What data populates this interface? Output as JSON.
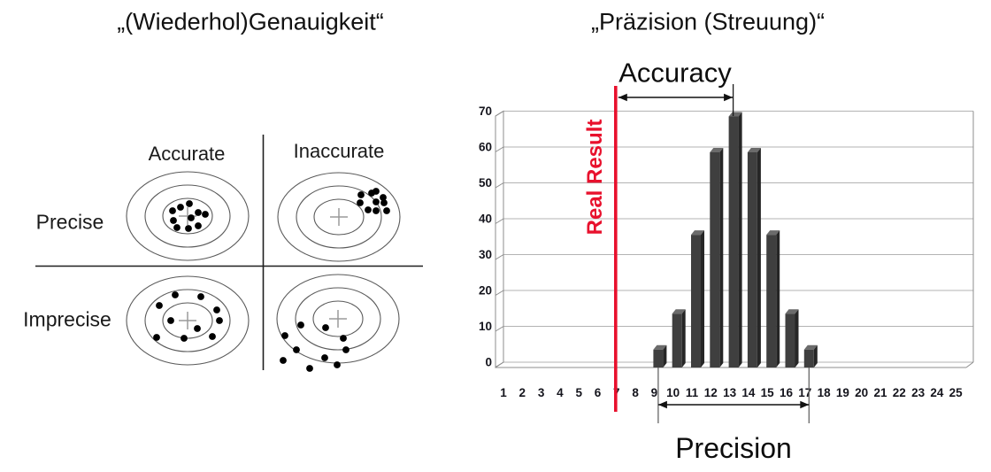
{
  "page": {
    "background": "#ffffff"
  },
  "left_panel": {
    "title": "„(Wiederhol)Genauigkeit“",
    "columns": [
      {
        "label": "Accurate"
      },
      {
        "label": "Inaccurate"
      }
    ],
    "rows": [
      {
        "label": "Precise"
      },
      {
        "label": "Imprecise"
      }
    ],
    "quadrants": [
      {
        "name": "precise-accurate",
        "dots": [
          [
            195,
            238
          ],
          [
            204,
            234
          ],
          [
            214,
            230
          ],
          [
            224,
            240
          ],
          [
            232,
            242
          ],
          [
            216,
            246
          ],
          [
            196,
            249
          ],
          [
            200,
            257
          ],
          [
            213,
            258
          ],
          [
            224,
            255
          ]
        ]
      },
      {
        "name": "precise-inaccurate",
        "dots": [
          [
            408,
            220
          ],
          [
            420,
            218
          ],
          [
            425,
            216
          ],
          [
            433,
            223
          ],
          [
            407,
            229
          ],
          [
            425,
            228
          ],
          [
            434,
            229
          ],
          [
            416,
            237
          ],
          [
            425,
            238
          ],
          [
            437,
            238
          ]
        ]
      },
      {
        "name": "imprecise-accurate",
        "dots": [
          [
            198,
            333
          ],
          [
            227,
            335
          ],
          [
            180,
            345
          ],
          [
            245,
            350
          ],
          [
            193,
            362
          ],
          [
            248,
            362
          ],
          [
            223,
            371
          ],
          [
            177,
            381
          ],
          [
            240,
            380
          ],
          [
            208,
            382
          ]
        ]
      },
      {
        "name": "imprecise-inaccurate",
        "dots": [
          [
            340,
            367
          ],
          [
            368,
            370
          ],
          [
            322,
            379
          ],
          [
            388,
            382
          ],
          [
            335,
            395
          ],
          [
            391,
            395
          ],
          [
            367,
            404
          ],
          [
            320,
            407
          ],
          [
            381,
            412
          ],
          [
            350,
            416
          ]
        ]
      }
    ]
  },
  "right_panel": {
    "title": "„Präzision (Streuung)“",
    "accuracy_label": "Accuracy",
    "precision_label": "Precision",
    "real_result_label": "Real Result",
    "real_result_color": "#e8112d",
    "real_result_x": 7,
    "accuracy_span_x": [
      7,
      13
    ],
    "precision_span_x": [
      9,
      17
    ]
  },
  "chart_data": {
    "type": "bar",
    "categories": [
      1,
      2,
      3,
      4,
      5,
      6,
      7,
      8,
      9,
      10,
      11,
      12,
      13,
      14,
      15,
      16,
      17,
      18,
      19,
      20,
      21,
      22,
      23,
      24,
      25
    ],
    "values": [
      0,
      0,
      0,
      0,
      0,
      0,
      0,
      0,
      5,
      15,
      37,
      60,
      70,
      60,
      37,
      15,
      5,
      0,
      0,
      0,
      0,
      0,
      0,
      0,
      0
    ],
    "title": "",
    "xlabel": "",
    "ylabel": "",
    "ylim": [
      0,
      70
    ],
    "yticks": [
      0,
      10,
      20,
      30,
      40,
      50,
      60,
      70
    ],
    "grid": true,
    "legend": "none",
    "bar_color_front": "#3f3f3f",
    "bar_color_side": "#262626",
    "bar_color_top": "#6b6b6b",
    "gridline_color": "#b3b3b3",
    "axis_color": "#8c8c8c",
    "tick_label_color": "#14141c"
  }
}
